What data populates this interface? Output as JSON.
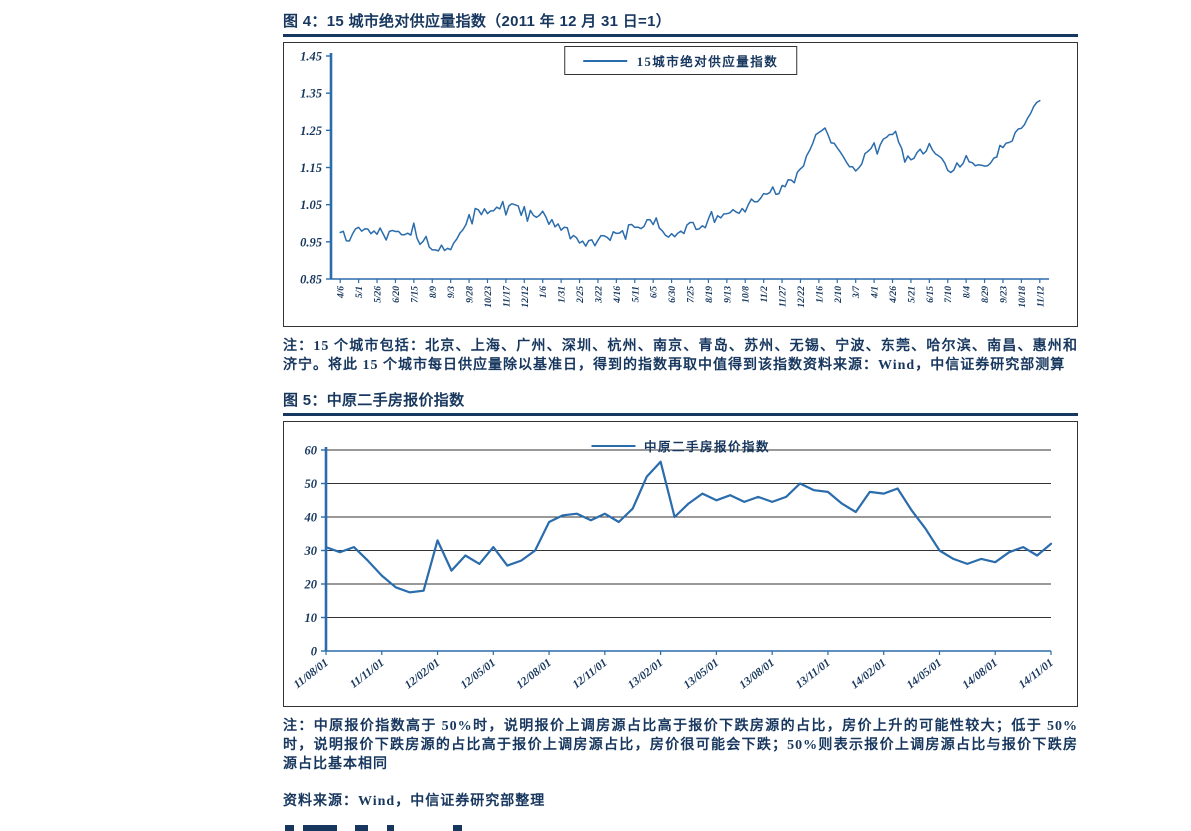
{
  "colors": {
    "navy": "#17375E",
    "line_blue": "#2A6CAC",
    "grid": "#333333",
    "border": "#333333"
  },
  "figures": [
    {
      "note": "注：15 个城市包括：北京、上海、广州、深圳、杭州、南京、青岛、苏州、无锡、宁波、东莞、哈尔滨、南昌、惠州和济宁。将此 15 个城市每日供应量除以基准日，得到的指数再取中值得到该指数资料来源：Wind，中信证券研究部测算"
    },
    {
      "note": "注：中原报价指数高于 50%时，说明报价上调房源占比高于报价下跌房源的占比，房价上升的可能性较大；低于 50%时，说明报价下跌房源的占比高于报价上调房源占比，房价很可能会下跌；50%则表示报价上调房源占比与报价下跌房源占比基本相同",
      "source": "资料来源：Wind，中信证券研究部整理"
    }
  ],
  "chart_data": [
    {
      "id": "figure4",
      "type": "line",
      "title": "图 4：15 城市绝对供应量指数（2011 年 12 月 31 日=1）",
      "legend": "15城市绝对供应量指数",
      "ylim": [
        0.85,
        1.45
      ],
      "y_ticks": [
        "0.85",
        "0.95",
        "1.05",
        "1.15",
        "1.25",
        "1.35",
        "1.45"
      ],
      "x_labels": [
        "4/6",
        "5/1",
        "5/26",
        "6/20",
        "7/15",
        "8/9",
        "9/3",
        "9/28",
        "10/23",
        "11/17",
        "12/12",
        "1/6",
        "1/31",
        "2/25",
        "3/22",
        "4/16",
        "5/11",
        "6/5",
        "6/30",
        "7/25",
        "8/19",
        "9/13",
        "10/8",
        "11/2",
        "11/27",
        "12/22",
        "1/16",
        "2/10",
        "3/7",
        "4/1",
        "4/26",
        "5/21",
        "6/15",
        "7/10",
        "8/4",
        "8/29",
        "9/23",
        "10/18",
        "11/12"
      ],
      "values": [
        0.975,
        0.985,
        0.98,
        0.985,
        0.975,
        0.94,
        0.925,
        1.02,
        1.03,
        1.05,
        1.03,
        1.02,
        0.99,
        0.945,
        0.95,
        0.97,
        0.99,
        1.0,
        0.97,
        0.99,
        1.0,
        1.02,
        1.04,
        1.08,
        1.09,
        1.15,
        1.25,
        1.2,
        1.14,
        1.21,
        1.24,
        1.17,
        1.21,
        1.14,
        1.17,
        1.16,
        1.2,
        1.26,
        1.33
      ],
      "sampling": "one value per x label (daily series shown with noise)",
      "line_color": "#2A6CAC",
      "grid": false,
      "legend_position": "top-center boxed",
      "x_label_rotation": -90,
      "noise": 0.013,
      "seed": 13
    },
    {
      "id": "figure5",
      "type": "line",
      "title": "图 5：中原二手房报价指数",
      "legend": "中原二手房报价指数",
      "ylim": [
        0,
        60
      ],
      "y_ticks": [
        "0",
        "10",
        "20",
        "30",
        "40",
        "50",
        "60"
      ],
      "x_labels": [
        "11/08/01",
        "11/11/01",
        "12/02/01",
        "12/05/01",
        "12/08/01",
        "12/11/01",
        "13/02/01",
        "13/05/01",
        "13/08/01",
        "13/11/01",
        "14/02/01",
        "14/05/01",
        "14/08/01",
        "14/11/01"
      ],
      "values": [
        31,
        29.5,
        31,
        27,
        22.5,
        19,
        17.5,
        18,
        33,
        24,
        28.5,
        26,
        31,
        25.5,
        27,
        30,
        38.5,
        40.5,
        41,
        39,
        41,
        38.5,
        42.5,
        52,
        56.5,
        40,
        44,
        47,
        45,
        46.5,
        44.5,
        46,
        44.5,
        46,
        50,
        48,
        47.5,
        44,
        41.5,
        47.5,
        47,
        48.5,
        42,
        36.5,
        30,
        27.5,
        26,
        27.5,
        26.5,
        29.5,
        31,
        28.5,
        32
      ],
      "sampling": "4 values per x-label interval",
      "line_color": "#2A6CAC",
      "grid": true,
      "legend_position": "top-center plain",
      "x_label_rotation": -38
    }
  ]
}
